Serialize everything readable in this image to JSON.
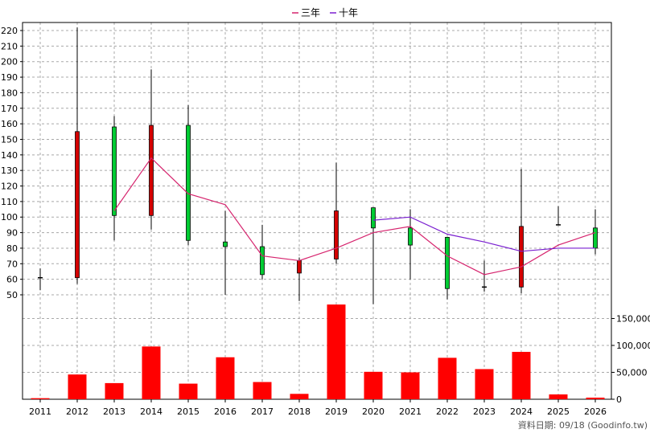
{
  "chart_data": {
    "type": "candlestick+line+bar",
    "categories": [
      "2011",
      "2012",
      "2013",
      "2014",
      "2015",
      "2016",
      "2017",
      "2018",
      "2019",
      "2020",
      "2021",
      "2022",
      "2023",
      "2024",
      "2025",
      "2026"
    ],
    "legend": [
      {
        "name": "三年",
        "color": "#d6246e"
      },
      {
        "name": "十年",
        "color": "#7a1fd0"
      }
    ],
    "price_axis": {
      "min": 50,
      "max": 220,
      "step": 10
    },
    "volume_axis": {
      "min": 0,
      "max": 150000,
      "step": 50000,
      "tick_labels": [
        "0",
        "50,000",
        "100,000",
        "150,000"
      ]
    },
    "candles": [
      {
        "year": "2011",
        "open": 61,
        "close": 61,
        "high": 67,
        "low": 53
      },
      {
        "year": "2012",
        "open": 61,
        "close": 155,
        "high": 222,
        "low": 57
      },
      {
        "year": "2013",
        "open": 158,
        "close": 101,
        "high": 165,
        "low": 85
      },
      {
        "year": "2014",
        "open": 101,
        "close": 159,
        "high": 195,
        "low": 92
      },
      {
        "year": "2015",
        "open": 159,
        "close": 85,
        "high": 172,
        "low": 82
      },
      {
        "year": "2016",
        "open": 84,
        "close": 81,
        "high": 104,
        "low": 50
      },
      {
        "year": "2017",
        "open": 81,
        "close": 63,
        "high": 95,
        "low": 60
      },
      {
        "year": "2018",
        "open": 64,
        "close": 72,
        "high": 74,
        "low": 46
      },
      {
        "year": "2019",
        "open": 73,
        "close": 104,
        "high": 135,
        "low": 70
      },
      {
        "year": "2020",
        "open": 106,
        "close": 93,
        "high": 106,
        "low": 44
      },
      {
        "year": "2021",
        "open": 93,
        "close": 82,
        "high": 105,
        "low": 60
      },
      {
        "year": "2022",
        "open": 87,
        "close": 54,
        "high": 87,
        "low": 47
      },
      {
        "year": "2023",
        "open": 55,
        "close": 55,
        "high": 72,
        "low": 52
      },
      {
        "year": "2024",
        "open": 55,
        "close": 94,
        "high": 131,
        "low": 51
      },
      {
        "year": "2025",
        "open": 95,
        "close": 95,
        "high": 107,
        "low": 95
      },
      {
        "year": "2026",
        "open": 93,
        "close": 80,
        "high": 105,
        "low": 76
      }
    ],
    "series": [
      {
        "name": "三年",
        "color": "#d6246e",
        "values": [
          null,
          null,
          104,
          138,
          115,
          108,
          75,
          72,
          80,
          90,
          94,
          75,
          63,
          68,
          82,
          90
        ]
      },
      {
        "name": "十年",
        "color": "#7a1fd0",
        "values": [
          null,
          null,
          null,
          null,
          null,
          null,
          null,
          null,
          null,
          98,
          100,
          89,
          84,
          78,
          80,
          80
        ]
      }
    ],
    "volume": [
      2000,
      46000,
      30000,
      98000,
      29000,
      78000,
      32000,
      10000,
      176000,
      51000,
      50000,
      77000,
      56000,
      88000,
      9000,
      3000
    ],
    "footer": "資料日期: 09/18  (Goodinfo.tw)"
  },
  "colors": {
    "up": "#d40000",
    "down": "#00cc33",
    "volume": "#ff0000",
    "grid": "#a8a8a8"
  }
}
